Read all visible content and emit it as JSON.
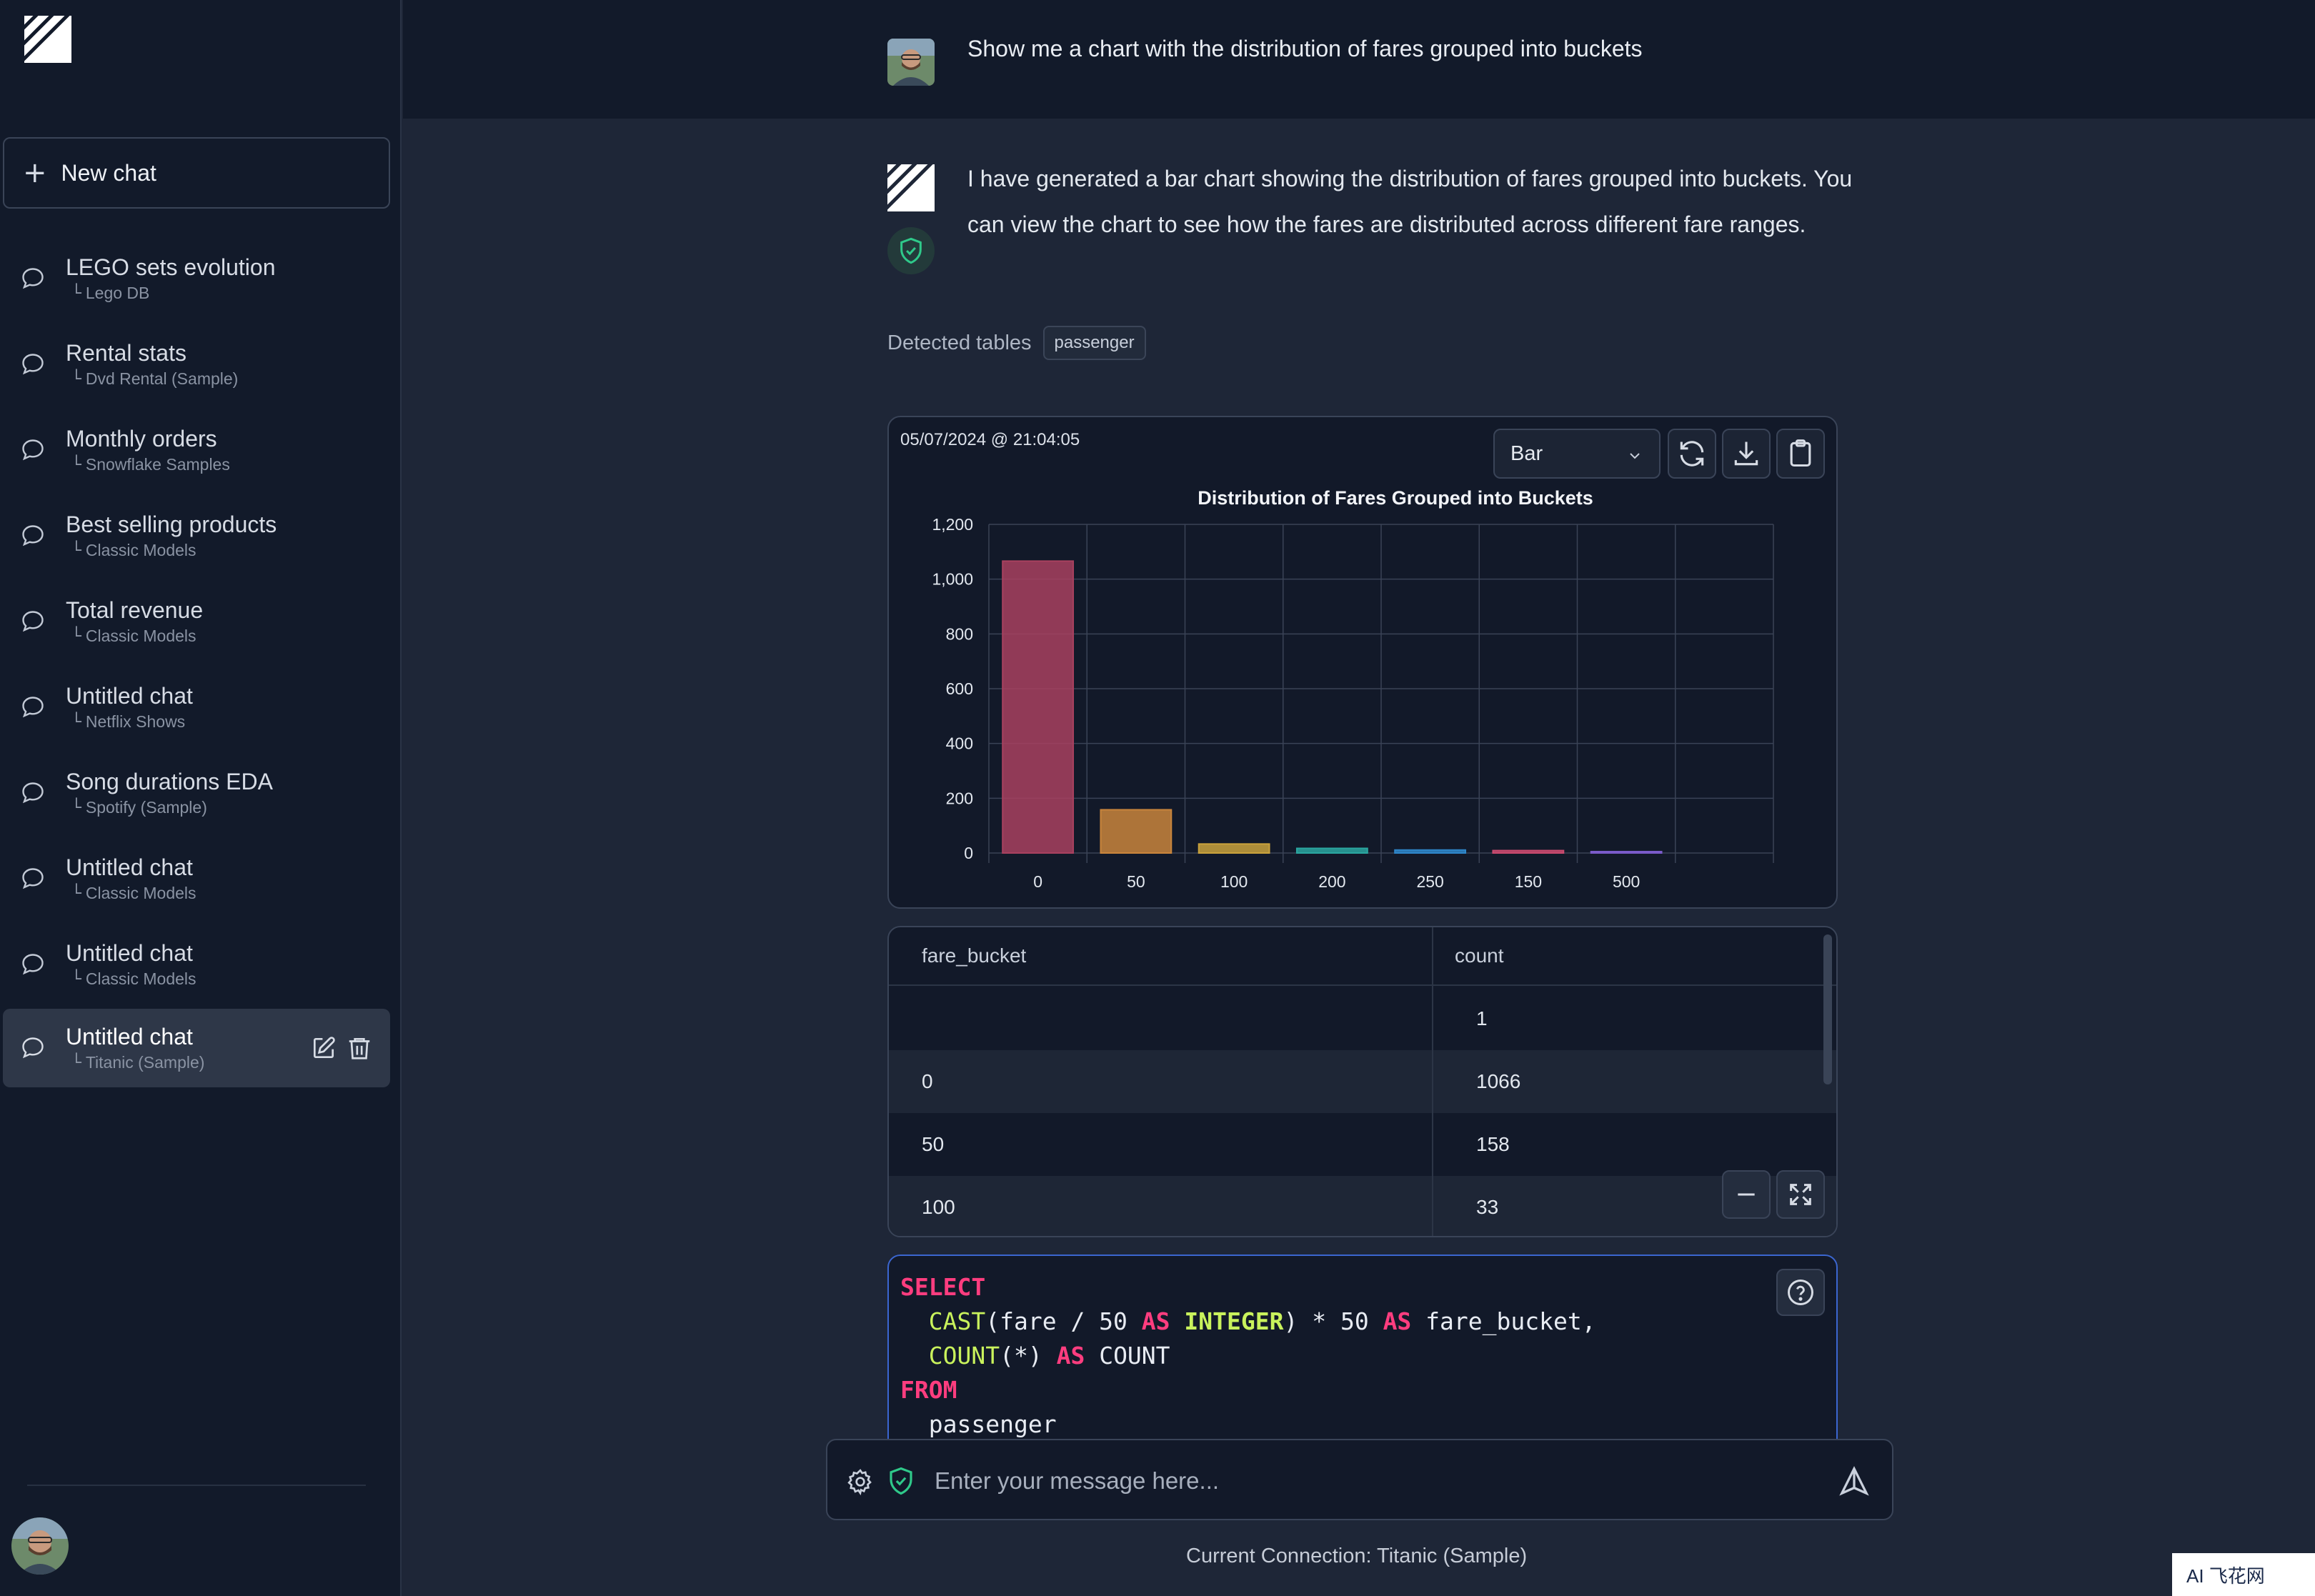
{
  "sidebar": {
    "new_chat_label": "New chat",
    "items": [
      {
        "title": "LEGO sets evolution",
        "connection": "Lego DB"
      },
      {
        "title": "Rental stats",
        "connection": "Dvd Rental (Sample)"
      },
      {
        "title": "Monthly orders",
        "connection": "Snowflake Samples"
      },
      {
        "title": "Best selling products",
        "connection": "Classic Models"
      },
      {
        "title": "Total revenue",
        "connection": "Classic Models"
      },
      {
        "title": "Untitled chat",
        "connection": "Netflix Shows"
      },
      {
        "title": "Song durations EDA",
        "connection": "Spotify (Sample)"
      },
      {
        "title": "Untitled chat",
        "connection": "Classic Models"
      },
      {
        "title": "Untitled chat",
        "connection": "Classic Models"
      },
      {
        "title": "Untitled chat",
        "connection": "Titanic (Sample)",
        "active": true
      }
    ]
  },
  "conversation": {
    "user_message": "Show me a chart with the distribution of fares grouped into buckets",
    "assistant_message": "I have generated a bar chart showing the distribution of fares grouped into buckets. You can view the chart to see how the fares are distributed across different fare ranges.",
    "detected_tables_label": "Detected tables",
    "detected_tables": [
      "passenger"
    ]
  },
  "chart_panel": {
    "timestamp": "05/07/2024 @ 21:04:05",
    "chart_type_selected": "Bar"
  },
  "chart_data": {
    "type": "bar",
    "title": "Distribution of Fares Grouped into Buckets",
    "categories": [
      "0",
      "50",
      "100",
      "200",
      "250",
      "150",
      "500"
    ],
    "values": [
      1066,
      158,
      33,
      17,
      11,
      9,
      4
    ],
    "bar_colors": [
      "#a8415f",
      "#c9853c",
      "#c9a23c",
      "#2aa6a0",
      "#2e86c9",
      "#c94a6e",
      "#7a5bc9"
    ],
    "yticks": [
      0,
      200,
      400,
      600,
      800,
      1000,
      1200
    ],
    "ytick_labels": [
      "0",
      "200",
      "400",
      "600",
      "800",
      "1,000",
      "1,200"
    ],
    "ylim": [
      0,
      1200
    ],
    "grid": true,
    "xlabel": "",
    "ylabel": ""
  },
  "table": {
    "columns": [
      "fare_bucket",
      "count"
    ],
    "rows": [
      [
        "",
        "1"
      ],
      [
        "0",
        "1066"
      ],
      [
        "50",
        "158"
      ],
      [
        "100",
        "33"
      ]
    ]
  },
  "sql": {
    "line1_kw": "SELECT",
    "line2_fn": "CAST",
    "line2_a": "(fare / 50 ",
    "line2_kw1": "AS",
    "line2_type": "INTEGER",
    "line2_b": ") * 50 ",
    "line2_kw2": "AS",
    "line2_c": " fare_bucket,",
    "line3_fn": "COUNT",
    "line3_a": "(*) ",
    "line3_kw": "AS",
    "line3_b": " COUNT",
    "line4_kw": "FROM",
    "line5": "passenger"
  },
  "input": {
    "placeholder": "Enter your message here..."
  },
  "footer": {
    "connection": "Current Connection: Titanic (Sample)"
  },
  "watermark": "AI 飞花网"
}
